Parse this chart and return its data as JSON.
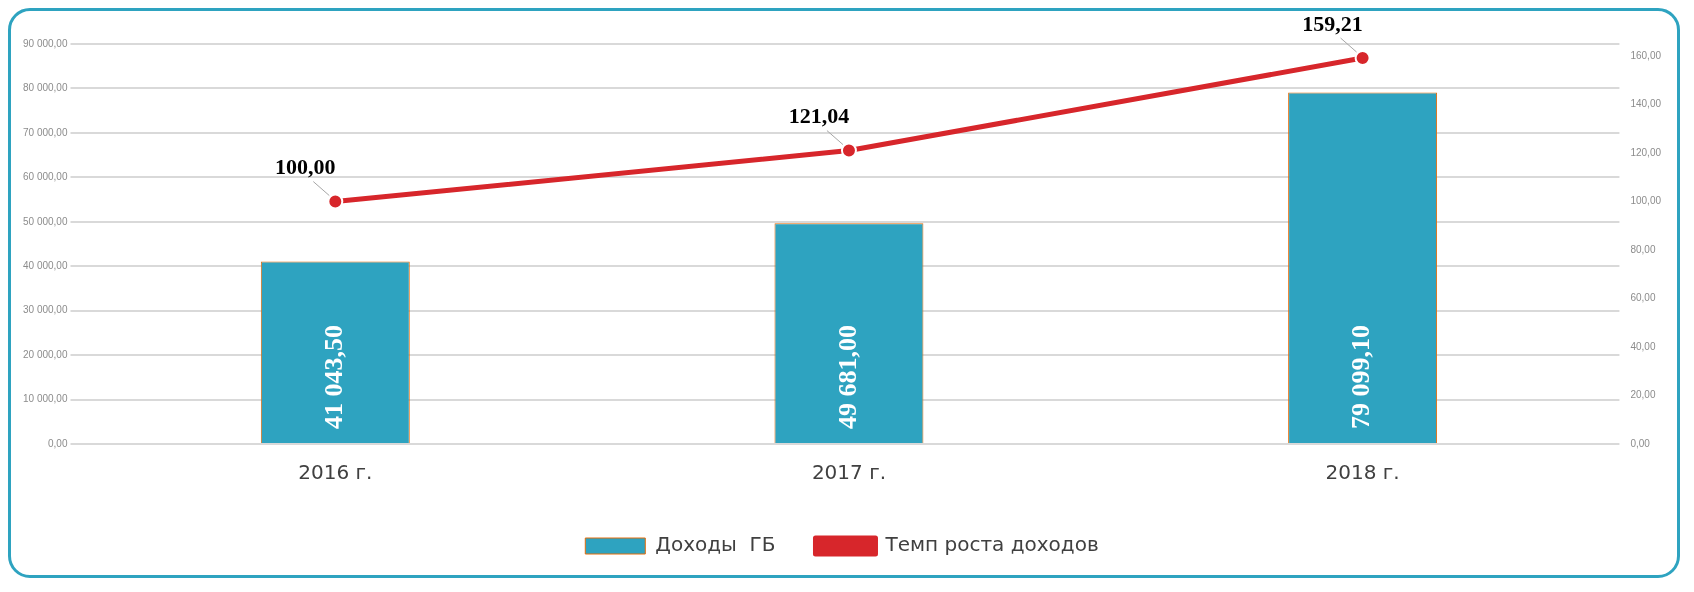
{
  "chart_data": {
    "type": "bar",
    "categories": [
      "2016 г.",
      "2017 г.",
      "2018 г."
    ],
    "series": [
      {
        "name": "Доходы  ГБ",
        "color": "#2ea3c0",
        "values": [
          41043.5,
          49681.0,
          79099.1
        ],
        "value_labels": [
          "41 043,50",
          "49 681,00",
          "79 099,10"
        ]
      },
      {
        "name": "Темп роста доходов",
        "type": "line",
        "axis": "y2",
        "color": "#d7262b",
        "values": [
          100.0,
          121.04,
          159.21
        ],
        "value_labels": [
          "100,00",
          "121,04",
          "159,21"
        ]
      }
    ],
    "ylim": [
      0,
      90000
    ],
    "yticks": [
      {
        "value": 0,
        "label": "0,00"
      },
      {
        "value": 10000,
        "label": "10 000,00"
      },
      {
        "value": 20000,
        "label": "20 000,00"
      },
      {
        "value": 30000,
        "label": "30 000,00"
      },
      {
        "value": 40000,
        "label": "40 000,00"
      },
      {
        "value": 50000,
        "label": "50 000,00"
      },
      {
        "value": 60000,
        "label": "60 000,00"
      },
      {
        "value": 70000,
        "label": "70 000,00"
      },
      {
        "value": 80000,
        "label": "80 000,00"
      },
      {
        "value": 90000,
        "label": "90 000,00"
      }
    ],
    "y2lim": [
      0,
      165
    ],
    "y2ticks": [
      {
        "value": 0,
        "label": "0,00"
      },
      {
        "value": 20,
        "label": "20,00"
      },
      {
        "value": 40,
        "label": "40,00"
      },
      {
        "value": 60,
        "label": "60,00"
      },
      {
        "value": 80,
        "label": "80,00"
      },
      {
        "value": 100,
        "label": "100,00"
      },
      {
        "value": 120,
        "label": "120,00"
      },
      {
        "value": 140,
        "label": "140,00"
      },
      {
        "value": 160,
        "label": "160,00"
      }
    ],
    "grid": "y",
    "legend": "bottom",
    "marker": "circle",
    "line_style": "solid"
  }
}
